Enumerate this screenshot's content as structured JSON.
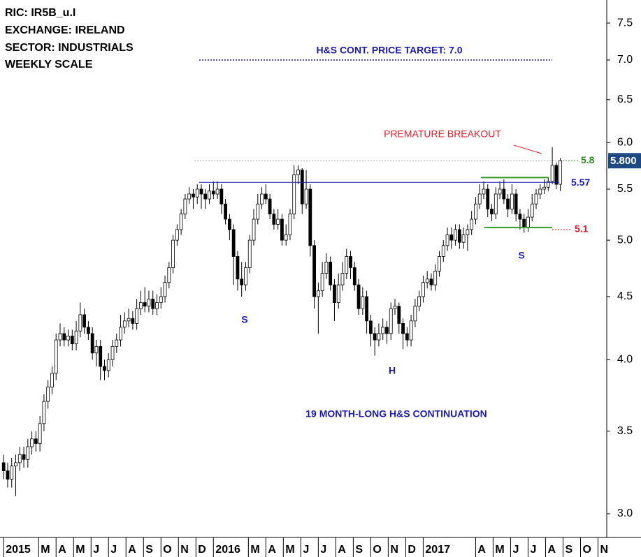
{
  "chart_data": {
    "type": "candlestick",
    "header": [
      "RIC: IR5B_u.I",
      "EXCHANGE: IRELAND",
      "SECTOR: INDUSTRIALS",
      "WEEKLY SCALE"
    ],
    "log_scale": true,
    "up_color": "#ffffff",
    "down_color": "#000000",
    "xlim": [
      -0.9,
      149.5
    ],
    "ylim": [
      2.87,
      7.83
    ],
    "yticks": [
      7.5,
      {
        "value": 7,
        "label": "7.0"
      },
      6.5,
      {
        "value": 6,
        "label": "6.0"
      },
      5.5,
      {
        "value": 5,
        "label": "5.0"
      },
      4.5,
      {
        "value": 4,
        "label": "4.0"
      },
      3.5,
      {
        "value": 3,
        "label": "3.0"
      }
    ],
    "xticks": [
      {
        "value": 0,
        "label": "2015"
      },
      {
        "value": 8.67,
        "label": "M"
      },
      {
        "value": 13,
        "label": "A"
      },
      {
        "value": 17.33,
        "label": "M"
      },
      {
        "value": 21.67,
        "label": "J"
      },
      {
        "value": 26,
        "label": "J"
      },
      {
        "value": 30.33,
        "label": "A"
      },
      {
        "value": 34.67,
        "label": "S"
      },
      {
        "value": 39,
        "label": "O"
      },
      {
        "value": 43.33,
        "label": "N"
      },
      {
        "value": 47.67,
        "label": "D"
      },
      {
        "value": 52,
        "label": "2016"
      },
      {
        "value": 60.67,
        "label": "M"
      },
      {
        "value": 65,
        "label": "A"
      },
      {
        "value": 69.33,
        "label": "M"
      },
      {
        "value": 73.67,
        "label": "J"
      },
      {
        "value": 78,
        "label": "J"
      },
      {
        "value": 82.33,
        "label": "A"
      },
      {
        "value": 86.67,
        "label": "S"
      },
      {
        "value": 91,
        "label": "O"
      },
      {
        "value": 95.33,
        "label": "N"
      },
      {
        "value": 99.67,
        "label": "D"
      },
      {
        "value": 104,
        "label": "2017"
      },
      {
        "value": 117,
        "label": "A"
      },
      {
        "value": 121.33,
        "label": "M"
      },
      {
        "value": 125.67,
        "label": "J"
      },
      {
        "value": 130,
        "label": "J"
      },
      {
        "value": 134.33,
        "label": "A"
      },
      {
        "value": 138.67,
        "label": "S"
      },
      {
        "value": 143,
        "label": "O"
      },
      {
        "value": 147.33,
        "label": "N"
      }
    ],
    "x": [
      0,
      1,
      2,
      3,
      4,
      5,
      6,
      7,
      8,
      9,
      10,
      11,
      12,
      13,
      14,
      15,
      16,
      17,
      18,
      19,
      20,
      21,
      22,
      23,
      24,
      25,
      26,
      27,
      28,
      29,
      30,
      31,
      32,
      33,
      34,
      35,
      36,
      37,
      38,
      39,
      40,
      41,
      42,
      43,
      44,
      45,
      46,
      47,
      48,
      49,
      50,
      51,
      52,
      53,
      54,
      55,
      56,
      57,
      58,
      59,
      60,
      61,
      62,
      63,
      64,
      65,
      66,
      67,
      68,
      69,
      70,
      71,
      72,
      73,
      74,
      75,
      76,
      77,
      78,
      79,
      80,
      81,
      82,
      83,
      84,
      85,
      86,
      87,
      88,
      89,
      90,
      91,
      92,
      93,
      94,
      95,
      96,
      97,
      98,
      99,
      100,
      101,
      102,
      103,
      104,
      105,
      106,
      107,
      108,
      109,
      110,
      111,
      112,
      113,
      114,
      115,
      116,
      117,
      118,
      119,
      120,
      121,
      122,
      123,
      124,
      125,
      126,
      127,
      128,
      129,
      130,
      131,
      132,
      133,
      134,
      135,
      136,
      137,
      138
    ],
    "open": [
      3.3,
      3.25,
      3.2,
      3.28,
      3.3,
      3.35,
      3.32,
      3.4,
      3.45,
      3.42,
      3.55,
      3.7,
      3.8,
      3.9,
      4.15,
      4.2,
      4.15,
      4.18,
      4.12,
      4.22,
      4.35,
      4.25,
      4.2,
      4.05,
      4.1,
      3.95,
      3.92,
      4.0,
      4.1,
      4.15,
      4.25,
      4.3,
      4.32,
      4.28,
      4.4,
      4.45,
      4.42,
      4.48,
      4.4,
      4.45,
      4.5,
      4.62,
      4.75,
      5.0,
      5.1,
      5.25,
      5.4,
      5.45,
      5.42,
      5.5,
      5.45,
      5.4,
      5.48,
      5.45,
      5.5,
      5.35,
      5.2,
      5.1,
      4.85,
      4.65,
      4.6,
      4.75,
      5.0,
      5.2,
      5.35,
      5.45,
      5.4,
      5.25,
      5.15,
      5.2,
      5.0,
      5.05,
      5.25,
      5.65,
      5.7,
      5.35,
      5.5,
      4.95,
      4.5,
      4.55,
      4.7,
      4.8,
      4.6,
      4.45,
      4.6,
      4.7,
      4.85,
      4.75,
      4.6,
      4.4,
      4.5,
      4.3,
      4.2,
      4.15,
      4.2,
      4.25,
      4.2,
      4.4,
      4.42,
      4.28,
      4.2,
      4.15,
      4.3,
      4.42,
      4.5,
      4.62,
      4.65,
      4.6,
      4.72,
      4.85,
      4.95,
      5.05,
      5.0,
      5.1,
      4.98,
      5.05,
      5.1,
      5.2,
      5.35,
      5.45,
      5.5,
      5.3,
      5.25,
      5.45,
      5.5,
      5.4,
      5.3,
      5.45,
      5.25,
      5.2,
      5.12,
      5.22,
      5.35,
      5.45,
      5.5,
      5.52,
      5.58,
      5.75,
      5.55
    ],
    "high": [
      3.35,
      3.3,
      3.33,
      3.35,
      3.4,
      3.4,
      3.45,
      3.5,
      3.5,
      3.6,
      3.75,
      3.85,
      3.95,
      4.2,
      4.28,
      4.25,
      4.23,
      4.23,
      4.3,
      4.45,
      4.4,
      4.3,
      4.25,
      4.15,
      4.15,
      4.0,
      4.05,
      4.15,
      4.2,
      4.35,
      4.37,
      4.4,
      4.38,
      4.48,
      4.55,
      4.58,
      4.55,
      4.55,
      4.52,
      4.58,
      4.68,
      4.8,
      5.05,
      5.15,
      5.3,
      5.45,
      5.52,
      5.5,
      5.55,
      5.55,
      5.5,
      5.55,
      5.58,
      5.58,
      5.55,
      5.4,
      5.25,
      5.15,
      4.9,
      4.8,
      4.8,
      5.05,
      5.3,
      5.45,
      5.52,
      5.55,
      5.45,
      5.3,
      5.3,
      5.25,
      5.15,
      5.3,
      5.75,
      5.75,
      5.72,
      5.7,
      5.55,
      5.0,
      4.62,
      4.8,
      4.88,
      4.85,
      4.65,
      4.7,
      4.8,
      4.92,
      4.9,
      4.8,
      4.65,
      4.58,
      4.55,
      4.35,
      4.25,
      4.28,
      4.32,
      4.3,
      4.45,
      4.48,
      4.45,
      4.32,
      4.25,
      4.35,
      4.48,
      4.55,
      4.68,
      4.72,
      4.7,
      4.78,
      4.9,
      5.0,
      5.12,
      5.12,
      5.15,
      5.15,
      5.12,
      5.15,
      5.28,
      5.42,
      5.55,
      5.58,
      5.55,
      5.35,
      5.52,
      5.58,
      5.6,
      5.45,
      5.55,
      5.5,
      5.3,
      5.25,
      5.3,
      5.45,
      5.5,
      5.55,
      5.6,
      5.62,
      5.95,
      5.78,
      5.83
    ],
    "low": [
      3.2,
      3.15,
      3.15,
      3.1,
      3.25,
      3.27,
      3.27,
      3.35,
      3.37,
      3.37,
      3.5,
      3.65,
      3.75,
      3.85,
      4.1,
      4.1,
      4.1,
      4.07,
      4.07,
      4.17,
      4.2,
      4.15,
      4.0,
      3.95,
      3.85,
      3.85,
      3.87,
      3.95,
      4.05,
      4.1,
      4.2,
      4.25,
      4.23,
      4.23,
      4.35,
      4.37,
      4.37,
      4.35,
      4.35,
      4.4,
      4.45,
      4.57,
      4.7,
      4.95,
      5.05,
      5.2,
      5.35,
      5.3,
      5.35,
      5.3,
      5.3,
      5.35,
      5.4,
      5.4,
      5.25,
      5.15,
      5.0,
      4.6,
      4.55,
      4.5,
      4.55,
      4.7,
      4.95,
      5.15,
      5.3,
      5.35,
      5.2,
      5.1,
      5.1,
      4.95,
      4.95,
      5.0,
      5.2,
      5.55,
      5.25,
      5.3,
      4.85,
      4.4,
      4.2,
      4.5,
      4.65,
      4.55,
      4.3,
      4.4,
      4.55,
      4.65,
      4.65,
      4.55,
      4.35,
      4.35,
      4.2,
      4.1,
      4.03,
      4.1,
      4.15,
      4.12,
      4.15,
      4.35,
      4.2,
      4.08,
      4.1,
      4.1,
      4.25,
      4.38,
      4.45,
      4.57,
      4.55,
      4.55,
      4.67,
      4.8,
      4.9,
      4.92,
      4.95,
      4.92,
      4.92,
      4.9,
      5.05,
      5.15,
      5.3,
      5.4,
      5.22,
      5.18,
      5.2,
      5.4,
      5.35,
      5.22,
      5.25,
      5.18,
      5.1,
      5.07,
      5.08,
      5.18,
      5.3,
      5.4,
      5.45,
      5.48,
      5.55,
      5.5,
      5.48
    ],
    "close": [
      3.25,
      3.2,
      3.28,
      3.3,
      3.35,
      3.32,
      3.4,
      3.45,
      3.42,
      3.55,
      3.7,
      3.8,
      3.9,
      4.15,
      4.2,
      4.15,
      4.18,
      4.12,
      4.22,
      4.35,
      4.25,
      4.2,
      4.05,
      4.1,
      3.95,
      3.92,
      4.0,
      4.1,
      4.15,
      4.25,
      4.3,
      4.32,
      4.28,
      4.4,
      4.45,
      4.42,
      4.48,
      4.4,
      4.45,
      4.5,
      4.62,
      4.75,
      5.0,
      5.1,
      5.25,
      5.4,
      5.45,
      5.42,
      5.5,
      5.45,
      5.4,
      5.48,
      5.45,
      5.5,
      5.35,
      5.2,
      5.1,
      4.85,
      4.65,
      4.6,
      4.75,
      5.0,
      5.2,
      5.35,
      5.45,
      5.4,
      5.25,
      5.15,
      5.2,
      5.0,
      5.05,
      5.25,
      5.65,
      5.7,
      5.35,
      5.5,
      4.95,
      4.5,
      4.55,
      4.7,
      4.8,
      4.6,
      4.45,
      4.6,
      4.7,
      4.85,
      4.75,
      4.6,
      4.4,
      4.5,
      4.3,
      4.2,
      4.15,
      4.2,
      4.25,
      4.2,
      4.4,
      4.42,
      4.28,
      4.2,
      4.15,
      4.3,
      4.42,
      4.5,
      4.62,
      4.65,
      4.6,
      4.72,
      4.85,
      4.95,
      5.05,
      5.0,
      5.1,
      4.98,
      5.05,
      5.1,
      5.2,
      5.35,
      5.45,
      5.5,
      5.3,
      5.25,
      5.45,
      5.5,
      5.4,
      5.3,
      5.45,
      5.25,
      5.2,
      5.12,
      5.22,
      5.35,
      5.45,
      5.5,
      5.52,
      5.58,
      5.75,
      5.55,
      5.8
    ],
    "target_line": {
      "value": 7,
      "label": "H&S CONT. PRICE TARGET: 7.0",
      "color": "#1a1ab0"
    },
    "neckline": {
      "value": 5.57,
      "color": "#1a1ab0"
    },
    "breakout_level": {
      "value": 5.8,
      "color": "#2e8b22"
    },
    "stop_level": {
      "value": 5.1,
      "color": "#e0202a"
    },
    "channel_lines": {
      "values": [
        5.62,
        5.12
      ],
      "color": "#2e9b22"
    },
    "last_price": {
      "value": 5.8,
      "label": "5.800",
      "color": "#1c4a80"
    },
    "annotations": [
      "S",
      "H",
      "S",
      "PREMATURE BREAKOUT",
      "19 MONTH-LONG H&S CONTINUATION"
    ]
  }
}
